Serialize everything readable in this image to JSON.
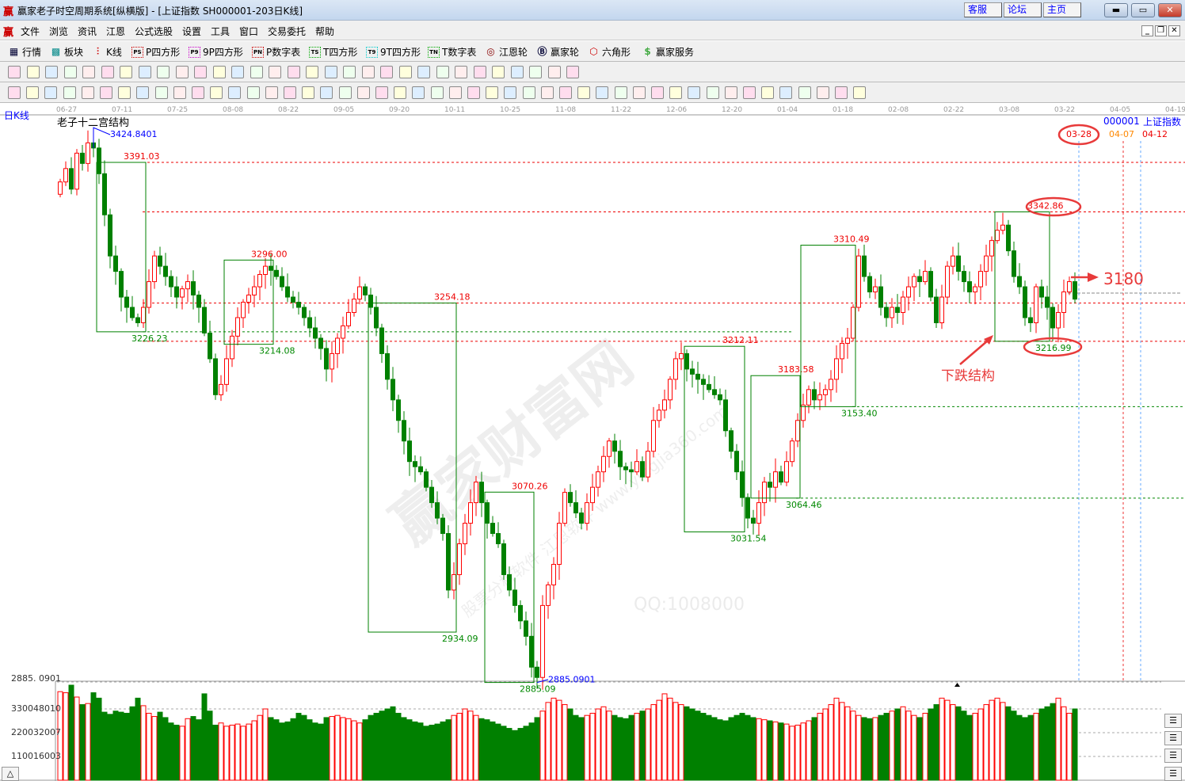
{
  "window": {
    "title": "赢家老子时空周期系统[纵横版] - [上证指数  SH000001-203日K线]",
    "logo": "赢",
    "links": [
      "客服",
      "论坛",
      "主页"
    ],
    "controls": [
      "minimize",
      "maximize",
      "close"
    ]
  },
  "menu": {
    "items": [
      "文件",
      "浏览",
      "资讯",
      "江恩",
      "公式选股",
      "设置",
      "工具",
      "窗口",
      "交易委托",
      "帮助"
    ]
  },
  "toolbar1": {
    "items": [
      {
        "label": "行情",
        "icon": "grid-icon"
      },
      {
        "label": "板块",
        "icon": "blocks-icon"
      },
      {
        "label": "K线",
        "icon": "candles-icon"
      },
      {
        "label": "P四方形",
        "icon": "PS"
      },
      {
        "label": "9P四方形",
        "icon": "P9"
      },
      {
        "label": "P数字表",
        "icon": "PN"
      },
      {
        "label": "T四方形",
        "icon": "TS"
      },
      {
        "label": "9T四方形",
        "icon": "T9"
      },
      {
        "label": "T数字表",
        "icon": "TN"
      },
      {
        "label": "江恩轮",
        "icon": "gann-wheel-icon"
      },
      {
        "label": "赢家轮",
        "icon": "big-wheel-icon"
      },
      {
        "label": "六角形",
        "icon": "hexagon-icon"
      },
      {
        "label": "赢家服务",
        "icon": "dollar-icon"
      }
    ]
  },
  "chart": {
    "period_label": "日K线",
    "indicator_title": "老子十二宫结构",
    "symbol": "000001",
    "symbol_name": "上证指数",
    "marker_date": "03-28",
    "future_dates": [
      "04-07",
      "04-12"
    ],
    "target_label": "3180",
    "structure_label": "下跌结构",
    "watermark": "赢家财富网",
    "watermark2": "股票分析软件  江恩软件  www.yingjia360.com",
    "watermark3": "QQ:1008000"
  },
  "chart_data": {
    "type": "candlestick",
    "x_ticks": [
      "06-27",
      "07-11",
      "07-25",
      "08-08",
      "08-22",
      "09-05",
      "09-20",
      "10-11",
      "10-25",
      "11-08",
      "11-22",
      "12-06",
      "12-20",
      "01-04",
      "01-18",
      "02-08",
      "02-22",
      "03-08",
      "03-22",
      "04-05",
      "04-19"
    ],
    "high_label": "3424.8401",
    "low_label": "2885.0901",
    "low_axis_label": "2885. 0901",
    "closes": [
      3372,
      3385,
      3365,
      3400,
      3390,
      3410,
      3405,
      3380,
      3340,
      3300,
      3285,
      3260,
      3250,
      3240,
      3235,
      3250,
      3275,
      3300,
      3290,
      3280,
      3270,
      3260,
      3268,
      3275,
      3262,
      3250,
      3225,
      3200,
      3165,
      3175,
      3200,
      3222,
      3240,
      3255,
      3262,
      3270,
      3282,
      3290,
      3286,
      3280,
      3270,
      3260,
      3255,
      3250,
      3240,
      3230,
      3220,
      3210,
      3190,
      3205,
      3220,
      3232,
      3245,
      3258,
      3270,
      3262,
      3250,
      3230,
      3205,
      3180,
      3160,
      3140,
      3120,
      3100,
      3095,
      3090,
      3075,
      3060,
      3045,
      3030,
      2975,
      2990,
      3020,
      3040,
      3060,
      3080,
      3060,
      3040,
      3030,
      3020,
      2990,
      2975,
      2960,
      2945,
      2930,
      2900,
      2890,
      2960,
      2980,
      3000,
      3040,
      3070,
      3060,
      3050,
      3040,
      3060,
      3075,
      3090,
      3105,
      3120,
      3110,
      3095,
      3092,
      3090,
      3100,
      3085,
      3110,
      3140,
      3150,
      3160,
      3180,
      3200,
      3205,
      3190,
      3185,
      3180,
      3175,
      3170,
      3165,
      3160,
      3130,
      3110,
      3090,
      3065,
      3045,
      3040,
      3060,
      3080,
      3075,
      3090,
      3080,
      3100,
      3120,
      3140,
      3155,
      3170,
      3160,
      3165,
      3170,
      3180,
      3200,
      3215,
      3220,
      3250,
      3300,
      3280,
      3265,
      3270,
      3250,
      3240,
      3250,
      3245,
      3260,
      3270,
      3280,
      3275,
      3285,
      3260,
      3235,
      3260,
      3290,
      3300,
      3285,
      3275,
      3265,
      3270,
      3285,
      3300,
      3315,
      3325,
      3330,
      3305,
      3280,
      3270,
      3240,
      3235,
      3270,
      3260,
      3250,
      3230,
      3245,
      3265,
      3275,
      3258
    ],
    "volumes_million": [
      410,
      405,
      440,
      385,
      350,
      355,
      405,
      380,
      315,
      305,
      320,
      315,
      310,
      340,
      380,
      345,
      310,
      295,
      315,
      290,
      265,
      255,
      250,
      285,
      295,
      280,
      400,
      320,
      255,
      265,
      250,
      255,
      260,
      250,
      260,
      275,
      300,
      330,
      290,
      280,
      265,
      270,
      285,
      310,
      300,
      280,
      265,
      260,
      290,
      295,
      300,
      290,
      285,
      275,
      265,
      280,
      300,
      310,
      320,
      330,
      340,
      310,
      290,
      280,
      270,
      265,
      250,
      255,
      260,
      270,
      280,
      300,
      310,
      330,
      320,
      300,
      285,
      280,
      270,
      260,
      250,
      240,
      230,
      240,
      250,
      265,
      290,
      320,
      360,
      380,
      370,
      350,
      330,
      300,
      290,
      300,
      310,
      330,
      340,
      320,
      300,
      290,
      285,
      300,
      310,
      320,
      330,
      350,
      370,
      400,
      380,
      360,
      350,
      340,
      330,
      320,
      310,
      300,
      290,
      280,
      275,
      290,
      300,
      310,
      300,
      290,
      285,
      280,
      275,
      270,
      265,
      260,
      250,
      255,
      265,
      275,
      290,
      310,
      330,
      350,
      380,
      360,
      340,
      320,
      300,
      290,
      285,
      290,
      300,
      310,
      320,
      330,
      340,
      320,
      300,
      290,
      310,
      330,
      350,
      380,
      370,
      350,
      340,
      320,
      300,
      310,
      330,
      350,
      370,
      380,
      360,
      340,
      320,
      300,
      290,
      300,
      310,
      330,
      340,
      355,
      380,
      340,
      310,
      330
    ],
    "volume_axis": [
      "330048010",
      "220032007",
      "110016003"
    ],
    "boxes": [
      {
        "from": 7,
        "to": 15,
        "top": 3391.03,
        "bottom": 3226.23,
        "top_label": "3391.03",
        "bottom_label": "3226.23"
      },
      {
        "from": 30,
        "to": 38,
        "top": 3296.0,
        "bottom": 3214.08,
        "top_label": "3296.00",
        "bottom_label": "3214.08"
      },
      {
        "from": 56,
        "to": 71,
        "top": 3254.18,
        "bottom": 2934.09,
        "top_label": "3254.18",
        "bottom_label": "2934.09"
      },
      {
        "from": 77,
        "to": 85,
        "top": 3070.26,
        "bottom": 2885.09,
        "top_label": "3070.26",
        "bottom_label": "2885.09"
      },
      {
        "from": 113,
        "to": 123,
        "top": 3212.11,
        "bottom": 3031.54,
        "top_label": "3212.11",
        "bottom_label": "3031.54"
      },
      {
        "from": 125,
        "to": 133,
        "top": 3183.58,
        "bottom": 3064.46,
        "top_label": "3183.58",
        "bottom_label": "3064.46"
      },
      {
        "from": 134,
        "to": 143,
        "top": 3310.49,
        "bottom": 3153.4,
        "top_label": "3310.49",
        "bottom_label": "3153.40"
      },
      {
        "from": 169,
        "to": 178,
        "top": 3342.86,
        "bottom": 3216.99,
        "top_label": "3342.86",
        "bottom_label": "3216.99"
      }
    ],
    "red_levels": [
      3391.03,
      3342.86,
      3254.18,
      3216.99
    ],
    "green_levels": [
      3226.23,
      3153.4,
      3064.46
    ],
    "colors": {
      "up": "#ff0000",
      "down": "#008000",
      "box": "#008000",
      "annotation": "#e83a3a",
      "axis_blue": "#0000ff"
    }
  }
}
